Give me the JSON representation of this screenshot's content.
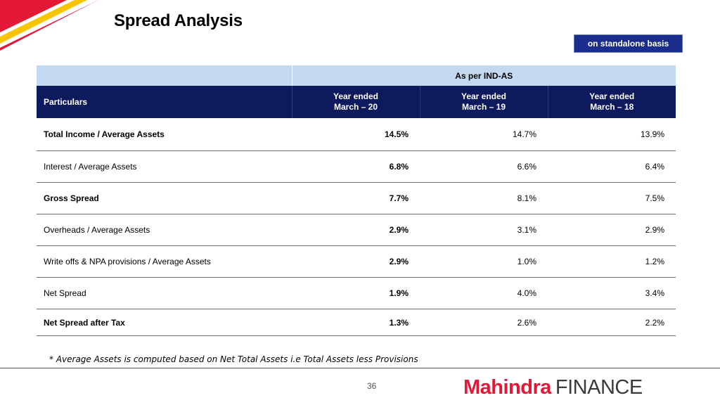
{
  "page": {
    "title": "Spread Analysis",
    "basis_badge": "on standalone basis",
    "footnote": "* Average Assets is computed based on Net Total Assets i.e Total Assets less Provisions",
    "page_number": "36",
    "logo": {
      "brand": "Mahindra",
      "word": "FINANCE"
    }
  },
  "colors": {
    "navy": "#0d1a5e",
    "band": "#c3d9f0",
    "badge": "#1b2d8c",
    "brand_red": "#e31837",
    "corner_red": "#e31837",
    "corner_yellow": "#f6c400"
  },
  "table": {
    "band_label": "As per IND-AS",
    "particulars_label": "Particulars",
    "columns": [
      {
        "line1": "Year ended",
        "line2": "March – 20"
      },
      {
        "line1": "Year ended",
        "line2": "March – 19"
      },
      {
        "line1": "Year ended",
        "line2": "March – 18"
      }
    ],
    "rows": [
      {
        "label": "Total Income / Average Assets",
        "values": [
          "14.5%",
          "14.7%",
          "13.9%"
        ]
      },
      {
        "label": "Interest / Average Assets",
        "values": [
          "6.8%",
          "6.6%",
          "6.4%"
        ]
      },
      {
        "label": "Gross Spread",
        "values": [
          "7.7%",
          "8.1%",
          "7.5%"
        ]
      },
      {
        "label": "Overheads / Average Assets",
        "values": [
          "2.9%",
          "3.1%",
          "2.9%"
        ]
      },
      {
        "label": "Write offs & NPA provisions / Average Assets",
        "values": [
          "2.9%",
          "1.0%",
          "1.2%"
        ]
      },
      {
        "label": "Net Spread",
        "values": [
          "1.9%",
          "4.0%",
          "3.4%"
        ]
      },
      {
        "label": "Net Spread after Tax",
        "values": [
          "1.3%",
          "2.6%",
          "2.2%"
        ]
      }
    ]
  }
}
